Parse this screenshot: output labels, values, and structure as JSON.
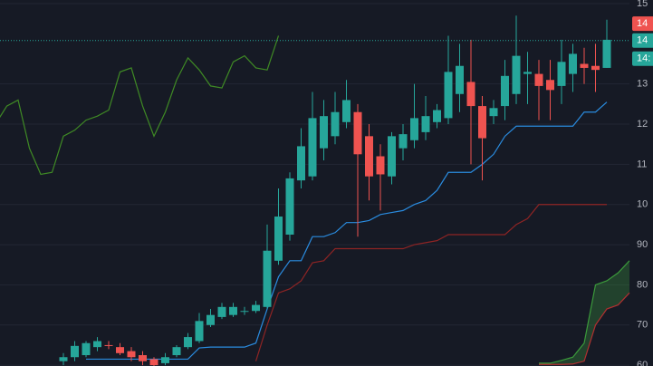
{
  "chart_data": {
    "type": "candlestick",
    "ylim": [
      59.8,
      150.9
    ],
    "yticks": [
      {
        "value": 150,
        "label": "15"
      },
      {
        "value": 130,
        "label": "13"
      },
      {
        "value": 120,
        "label": "12"
      },
      {
        "value": 110,
        "label": "11"
      },
      {
        "value": 100,
        "label": "10"
      },
      90,
      80,
      70,
      60
    ],
    "grid": true,
    "up_color": "#26a69a",
    "down_color": "#ef5350",
    "open": [
      null,
      null,
      null,
      null,
      null,
      null,
      61,
      62,
      62.5,
      64.5,
      65,
      64.5,
      63.5,
      62.5,
      61.5,
      60.5,
      62.5,
      64.5,
      66,
      70,
      72,
      72.5,
      73.5,
      73.5,
      74.5,
      86,
      92.5,
      106,
      107,
      114,
      117,
      120.5,
      123,
      117,
      112,
      107,
      114,
      116,
      118,
      120.5,
      121.5,
      127.5,
      130.5,
      124.5,
      122,
      124.5,
      127.5,
      132.5,
      132.5,
      131,
      129.5,
      132.5,
      135,
      134.5,
      134,
      null,
      null
    ],
    "high": [
      null,
      null,
      null,
      null,
      null,
      null,
      63,
      66,
      66,
      67,
      66,
      65.5,
      64.5,
      63.5,
      62,
      63,
      65,
      68,
      73,
      74,
      75.5,
      75.5,
      74.5,
      76,
      95,
      104,
      108,
      119,
      128,
      126,
      128,
      131,
      125,
      120,
      115,
      118,
      120,
      130,
      127,
      125,
      142,
      140,
      141,
      127,
      126,
      136,
      147,
      138,
      136,
      136,
      141,
      140,
      139,
      140,
      146,
      null,
      null
    ],
    "low": [
      null,
      null,
      null,
      null,
      null,
      null,
      60,
      61,
      62,
      63.5,
      64,
      62.5,
      61,
      60,
      59.8,
      60,
      62,
      64,
      65.5,
      69.5,
      71.5,
      72,
      72.5,
      73,
      74,
      85,
      91,
      104,
      106,
      111,
      115,
      119,
      92,
      101,
      98.5,
      105,
      111,
      114,
      116,
      119,
      120,
      123,
      110,
      106,
      120,
      121,
      125,
      125,
      121,
      121,
      125,
      128,
      130,
      128,
      134,
      null,
      null
    ],
    "close": [
      null,
      null,
      null,
      null,
      null,
      null,
      62,
      64.8,
      65.5,
      66,
      64.8,
      63,
      62,
      61,
      60,
      62,
      64.5,
      67,
      71,
      72.5,
      74.5,
      74.5,
      73.5,
      75,
      88.5,
      97,
      106.5,
      114.5,
      121.5,
      122,
      123,
      126,
      112.5,
      107,
      107.5,
      117,
      117.5,
      121.5,
      122,
      123.5,
      133,
      134.5,
      124.5,
      116.5,
      124,
      132,
      137,
      133,
      129.5,
      128.5,
      135.5,
      137.5,
      134,
      133.5,
      141,
      null,
      null
    ],
    "series": [
      {
        "color": "#2a8ce0",
        "values": [
          null,
          null,
          null,
          null,
          null,
          null,
          null,
          null,
          61.5,
          61.5,
          61.5,
          61.5,
          61.5,
          61.5,
          61.5,
          61.5,
          61.5,
          61.5,
          64.3,
          64.5,
          64.5,
          64.5,
          64.5,
          65.5,
          74,
          82,
          86,
          86,
          92,
          92,
          93,
          95.5,
          95.5,
          96,
          97.5,
          98,
          98.5,
          100,
          101,
          103.5,
          108,
          108,
          108,
          110,
          112.5,
          117,
          119.5,
          119.5,
          119.5,
          119.5,
          119.5,
          119.5,
          123,
          123,
          125.5,
          null,
          null
        ]
      },
      {
        "color": "#8e2424",
        "values": [
          null,
          null,
          null,
          null,
          null,
          null,
          null,
          null,
          null,
          null,
          null,
          null,
          null,
          null,
          null,
          null,
          null,
          null,
          null,
          null,
          null,
          null,
          null,
          61,
          70,
          78,
          79,
          81,
          85.5,
          86,
          89,
          89,
          89,
          89,
          89,
          89,
          89,
          90,
          90.5,
          91,
          92.5,
          92.5,
          92.5,
          92.5,
          92.5,
          92.5,
          95,
          96.5,
          100,
          100,
          100,
          100,
          100,
          100,
          100,
          null,
          null
        ]
      },
      {
        "color": "#3f8a25",
        "values": [
          120,
          124.5,
          126,
          114,
          107.5,
          108,
          117,
          118.5,
          121,
          122,
          123.5,
          133,
          134,
          124.5,
          117,
          123,
          131,
          136.5,
          133.5,
          129.5,
          129,
          135.5,
          137,
          134,
          133.5,
          142,
          null,
          null,
          null,
          null,
          null,
          null,
          null,
          null,
          null,
          null,
          null,
          null,
          null,
          null,
          null,
          null,
          null,
          null,
          null,
          null,
          null,
          null,
          null,
          null,
          null,
          null,
          null,
          null,
          null,
          null,
          null
        ]
      },
      {
        "color": "#3b9a3b",
        "cloud": true,
        "values": [
          null,
          null,
          null,
          null,
          null,
          null,
          null,
          null,
          null,
          null,
          null,
          null,
          null,
          null,
          null,
          null,
          null,
          null,
          null,
          null,
          null,
          null,
          null,
          null,
          null,
          null,
          null,
          null,
          null,
          null,
          null,
          null,
          null,
          null,
          null,
          null,
          null,
          null,
          null,
          null,
          null,
          null,
          null,
          null,
          null,
          null,
          null,
          null,
          60.5,
          60.5,
          61.2,
          62,
          65.5,
          80,
          81,
          83,
          86
        ]
      },
      {
        "color": "#b03030",
        "cloud": true,
        "values": [
          null,
          null,
          null,
          null,
          null,
          null,
          null,
          null,
          null,
          null,
          null,
          null,
          null,
          null,
          null,
          null,
          null,
          null,
          null,
          null,
          null,
          null,
          null,
          null,
          null,
          null,
          null,
          null,
          null,
          null,
          null,
          null,
          null,
          null,
          null,
          null,
          null,
          null,
          null,
          null,
          null,
          null,
          null,
          null,
          null,
          null,
          null,
          null,
          60.2,
          60.2,
          60.2,
          60.3,
          61,
          70,
          74,
          75,
          78
        ]
      }
    ],
    "cloud_color": "rgba(56,142,60,0.35)",
    "price_labels": [
      {
        "label": "14",
        "value": 145,
        "color": "#ef5350"
      },
      {
        "label": "14",
        "value": 140.8,
        "color": "#26a69a"
      }
    ],
    "countdown_label": "14:"
  }
}
